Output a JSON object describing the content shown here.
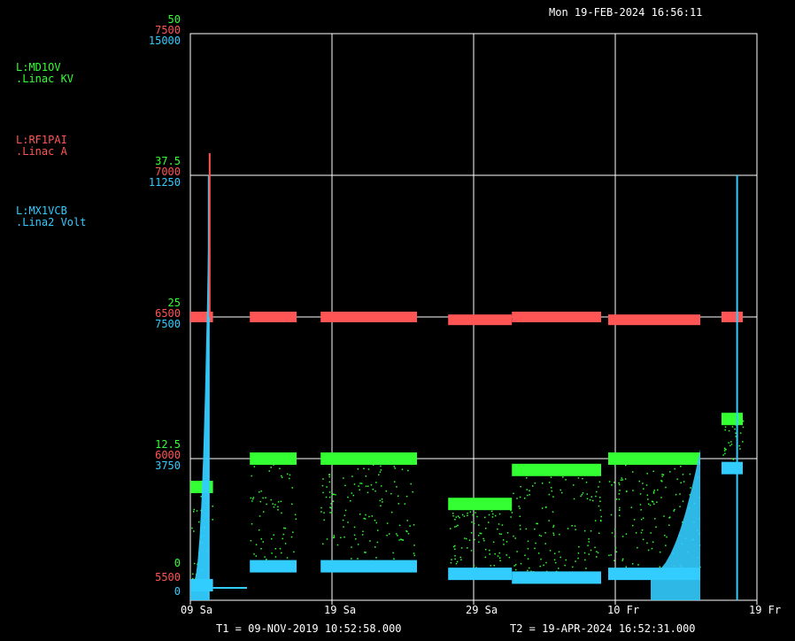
{
  "header": {
    "datetime": "Mon 19-FEB-2024 16:56:11"
  },
  "legend": [
    {
      "device": "L:MD1OV",
      "description": ".Linac KV",
      "color": "#33ff33"
    },
    {
      "device": "L:RF1PAI",
      "description": ".Linac A",
      "color": "#ff5555"
    },
    {
      "device": "L:MX1VCB",
      "description": ".Lina2 Volt",
      "color": "#33ccff"
    }
  ],
  "footer": {
    "t1": "T1 = 09-NOV-2019 10:52:58.000",
    "t2": "T2 = 19-APR-2024 16:52:31.000"
  },
  "chart_data": {
    "type": "scatter",
    "grid": true,
    "axes": {
      "green": {
        "name": "L:MD1OV",
        "ylim": [
          0,
          50
        ],
        "ticks": [
          "50",
          "37.5",
          "25",
          "12.5",
          "0"
        ]
      },
      "red": {
        "name": "L:RF1PAI",
        "ylim": [
          5500,
          7500
        ],
        "ticks": [
          "7500",
          "7000",
          "6500",
          "6000",
          "5500"
        ]
      },
      "blue": {
        "name": "L:MX1VCB",
        "ylim": [
          0,
          15000
        ],
        "ticks": [
          "15000",
          "11250",
          "7500",
          "3750",
          "0"
        ]
      }
    },
    "x_ticks": [
      "09 Sa",
      "19 Sa",
      "29 Sa",
      "10 Fr",
      "19 Fr"
    ],
    "segments": [
      {
        "x": [
          0.0,
          0.16
        ],
        "green": 10,
        "red": 6500,
        "blue": 400
      },
      {
        "x": [
          0.42,
          0.75
        ],
        "green": 12.5,
        "red": 6500,
        "blue": 900
      },
      {
        "x": [
          0.92,
          1.6
        ],
        "green": 12.5,
        "red": 6500,
        "blue": 900
      },
      {
        "x": [
          1.82,
          2.27
        ],
        "green": 8.5,
        "red": 6490,
        "blue": 700
      },
      {
        "x": [
          2.27,
          2.5
        ],
        "green": 11.5,
        "red": 6500,
        "blue": 600
      },
      {
        "x": [
          2.5,
          2.9
        ],
        "green": 11.5,
        "red": 6500,
        "blue": 600
      },
      {
        "x": [
          2.95,
          3.6
        ],
        "green": 12.5,
        "red": 6490,
        "blue": 700
      },
      {
        "x": [
          3.75,
          3.9
        ],
        "green": 16,
        "red": 6500,
        "blue": 3500
      }
    ],
    "spikes": [
      {
        "x": 0.13,
        "red": 7000,
        "blue": 11250
      },
      {
        "x": 3.86,
        "blue": 11250
      }
    ]
  }
}
